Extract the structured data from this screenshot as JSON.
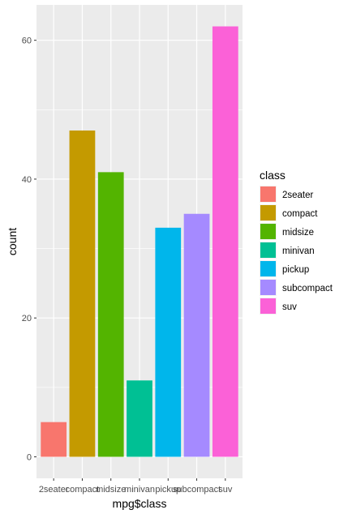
{
  "chart_data": {
    "type": "bar",
    "categories": [
      "2seater",
      "compact",
      "midsize",
      "minivan",
      "pickup",
      "subcompact",
      "suv"
    ],
    "values": [
      5,
      47,
      41,
      11,
      33,
      35,
      62
    ],
    "colors": [
      "#F8766D",
      "#C49A00",
      "#53B400",
      "#00C094",
      "#00B6EB",
      "#A58AFF",
      "#FB61D7"
    ],
    "xlabel": "mpg$class",
    "ylabel": "count",
    "yticks": [
      0,
      20,
      40,
      60
    ],
    "ylim": [
      -3.1,
      65.1
    ],
    "grid": true,
    "legend": {
      "title": "class",
      "placement": "right",
      "entries": [
        "2seater",
        "compact",
        "midsize",
        "minivan",
        "pickup",
        "subcompact",
        "suv"
      ]
    },
    "panel_background": "#EBEBEB",
    "grid_color": "#FFFFFF"
  }
}
